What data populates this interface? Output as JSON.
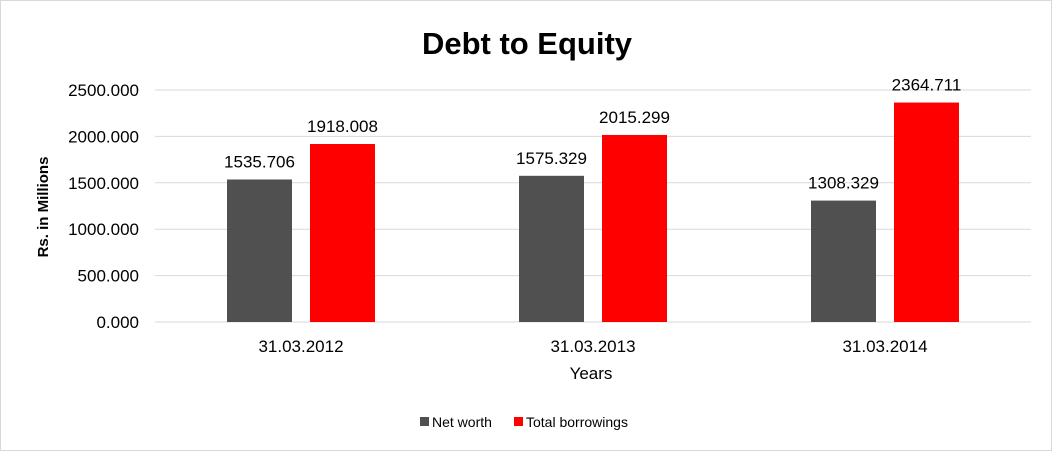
{
  "chart_data": {
    "type": "bar",
    "title": "Debt to Equity",
    "xlabel": "Years",
    "ylabel": "Rs. in Millions",
    "categories": [
      "31.03.2012",
      "31.03.2013",
      "31.03.2014"
    ],
    "series": [
      {
        "name": "Net worth",
        "values": [
          1535.706,
          1575.329,
          1308.329
        ],
        "color": "#505050"
      },
      {
        "name": "Total borrowings",
        "values": [
          1918.008,
          2015.299,
          2364.711
        ],
        "color": "#ff0000"
      }
    ],
    "ylim": [
      0,
      2500
    ],
    "yticks": [
      "0.000",
      "500.000",
      "1000.000",
      "1500.000",
      "2000.000",
      "2500.000"
    ],
    "grid": true,
    "legend": "bottom"
  }
}
